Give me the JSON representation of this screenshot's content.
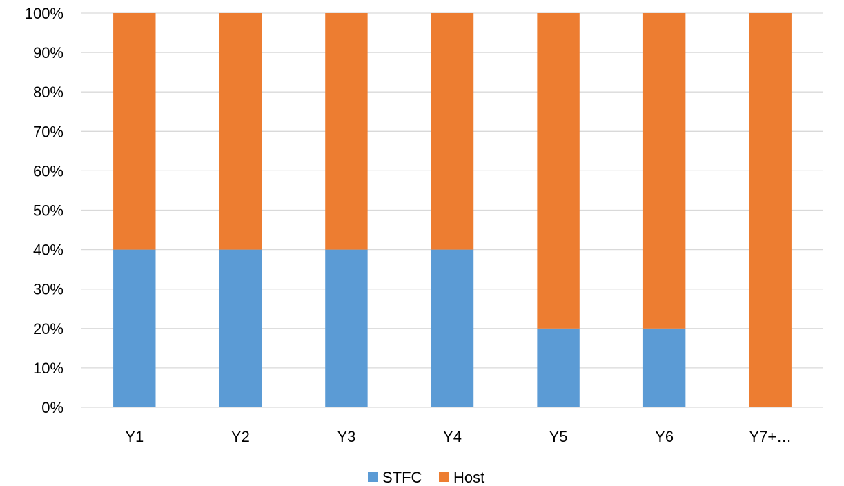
{
  "chart_data": {
    "type": "bar",
    "stacked": true,
    "percent": true,
    "categories": [
      "Y1",
      "Y2",
      "Y3",
      "Y4",
      "Y5",
      "Y6",
      "Y7+…"
    ],
    "series": [
      {
        "name": "STFC",
        "color": "#5B9BD5",
        "values": [
          40,
          40,
          40,
          40,
          20,
          20,
          0
        ]
      },
      {
        "name": "Host",
        "color": "#ED7D31",
        "values": [
          60,
          60,
          60,
          60,
          80,
          80,
          100
        ]
      }
    ],
    "y_ticks": [
      "0%",
      "10%",
      "20%",
      "30%",
      "40%",
      "50%",
      "60%",
      "70%",
      "80%",
      "90%",
      "100%"
    ],
    "ylim": [
      0,
      100
    ],
    "grid": true,
    "legend_position": "bottom"
  }
}
